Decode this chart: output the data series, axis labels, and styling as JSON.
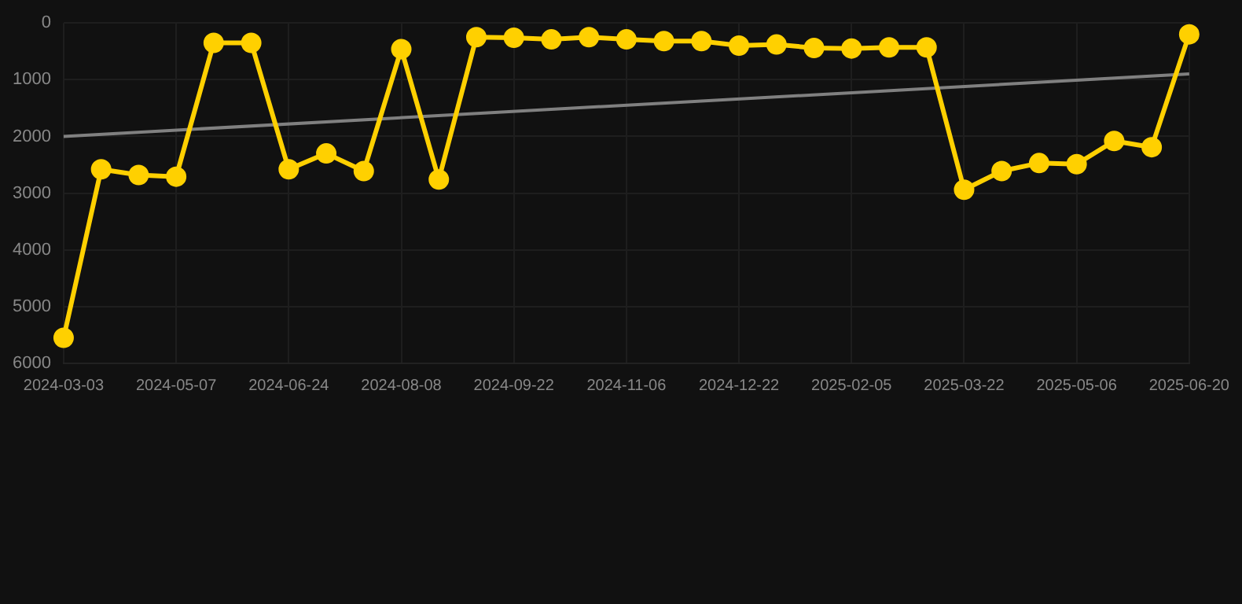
{
  "chart_data": {
    "type": "line",
    "categories": [
      "2024-03-03",
      null,
      null,
      "2024-05-07",
      null,
      null,
      "2024-06-24",
      null,
      null,
      "2024-08-08",
      null,
      null,
      "2024-09-22",
      null,
      null,
      "2024-11-06",
      null,
      null,
      "2024-12-22",
      null,
      null,
      "2025-02-05",
      null,
      null,
      "2025-03-22",
      null,
      null,
      "2025-05-06",
      null,
      null,
      "2025-06-20"
    ],
    "series": [
      {
        "color": "#ffd000",
        "marker": "circle",
        "values": [
          5550,
          2580,
          2680,
          2710,
          350,
          350,
          2580,
          2300,
          2610,
          460,
          2760,
          250,
          260,
          290,
          250,
          290,
          320,
          320,
          400,
          380,
          440,
          450,
          430,
          430,
          2940,
          2610,
          2470,
          2490,
          2080,
          2190,
          200
        ]
      },
      {
        "type": "line",
        "color": "#808080",
        "marker": "none",
        "values": [
          2000,
          null,
          null,
          null,
          null,
          null,
          null,
          null,
          null,
          null,
          null,
          null,
          null,
          null,
          null,
          null,
          null,
          null,
          null,
          null,
          null,
          null,
          null,
          null,
          null,
          null,
          null,
          null,
          null,
          null,
          900
        ]
      }
    ],
    "ylim": [
      6000,
      0
    ],
    "yticks": [
      0,
      1000,
      2000,
      3000,
      4000,
      5000,
      6000
    ],
    "grid": true,
    "legend": false
  }
}
